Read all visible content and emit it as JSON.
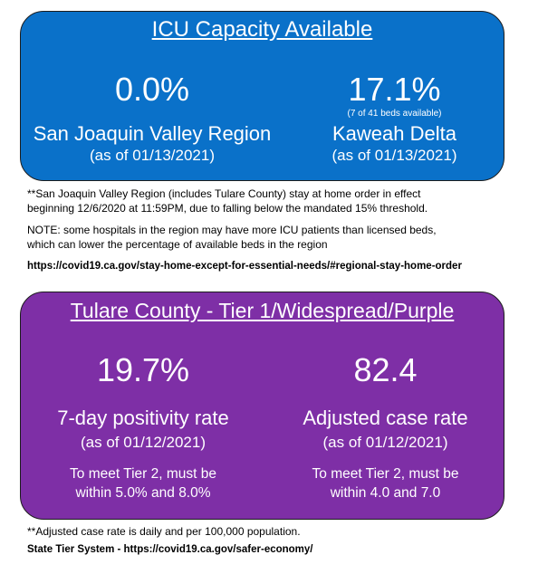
{
  "icu": {
    "title": "ICU Capacity Available",
    "left": {
      "value": "0.0%",
      "name": "San Joaquin Valley Region",
      "as_of": "(as of 01/13/2021)"
    },
    "right": {
      "value": "17.1%",
      "note": "(7 of 41 beds available)",
      "name": "Kaweah Delta",
      "as_of": "(as of 01/13/2021)"
    }
  },
  "icu_notes": {
    "line1": "**San Joaquin Valley Region (includes Tulare County) stay at home order in effect",
    "line2": "beginning 12/6/2020 at 11:59PM,  due to falling below the mandated 15% threshold.",
    "line3": "NOTE:  some hospitals in the region may have more ICU patients than licensed beds,",
    "line4": "which can lower the percentage of available beds in the region",
    "link": "https://covid19.ca.gov/stay-home-except-for-essential-needs/#regional-stay-home-order"
  },
  "tier": {
    "title": "Tulare County - Tier 1/Widespread/Purple",
    "left": {
      "value": "19.7%",
      "name": "7-day positivity rate",
      "as_of": "(as of 01/12/2021)",
      "req1": "To meet Tier 2, must be",
      "req2": "within 5.0% and 8.0%"
    },
    "right": {
      "value": "82.4",
      "name": "Adjusted case rate",
      "as_of": "(as of 01/12/2021)",
      "req1": "To meet Tier 2, must be",
      "req2": "within 4.0 and 7.0"
    }
  },
  "tier_notes": {
    "line1": "**Adjusted case rate is daily and per 100,000  population.",
    "link": "State Tier System - https://covid19.ca.gov/safer-economy/"
  }
}
